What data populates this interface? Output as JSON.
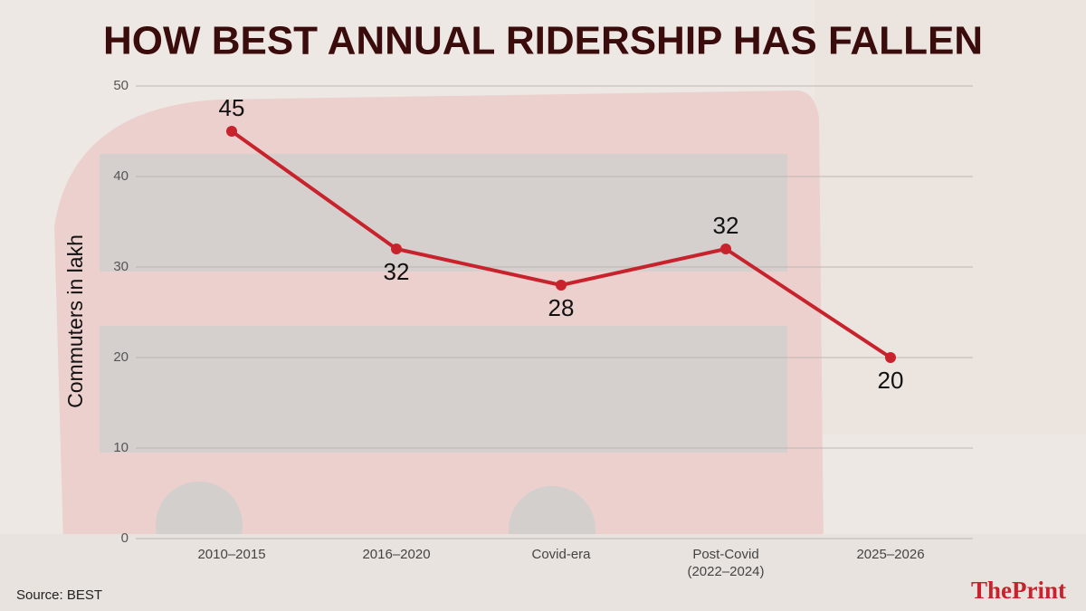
{
  "chart_data": {
    "type": "line",
    "title": "HOW BEST ANNUAL RIDERSHIP HAS FALLEN",
    "y_label": "Commuters in lakh",
    "categories": [
      "2010–2015",
      "2016–2020",
      "Covid-era",
      "Post-Covid (2022–2024)",
      "2025–2026"
    ],
    "series": [
      {
        "name": "Commuters",
        "color": "#c8232c",
        "values": [
          45,
          32,
          28,
          32,
          20
        ]
      }
    ],
    "ylim": [
      0,
      50
    ],
    "yticks": [
      0,
      10,
      20,
      30,
      40,
      50
    ],
    "grid": true
  },
  "source": "Source: BEST",
  "logo": {
    "first": "The",
    "second": "Print"
  }
}
